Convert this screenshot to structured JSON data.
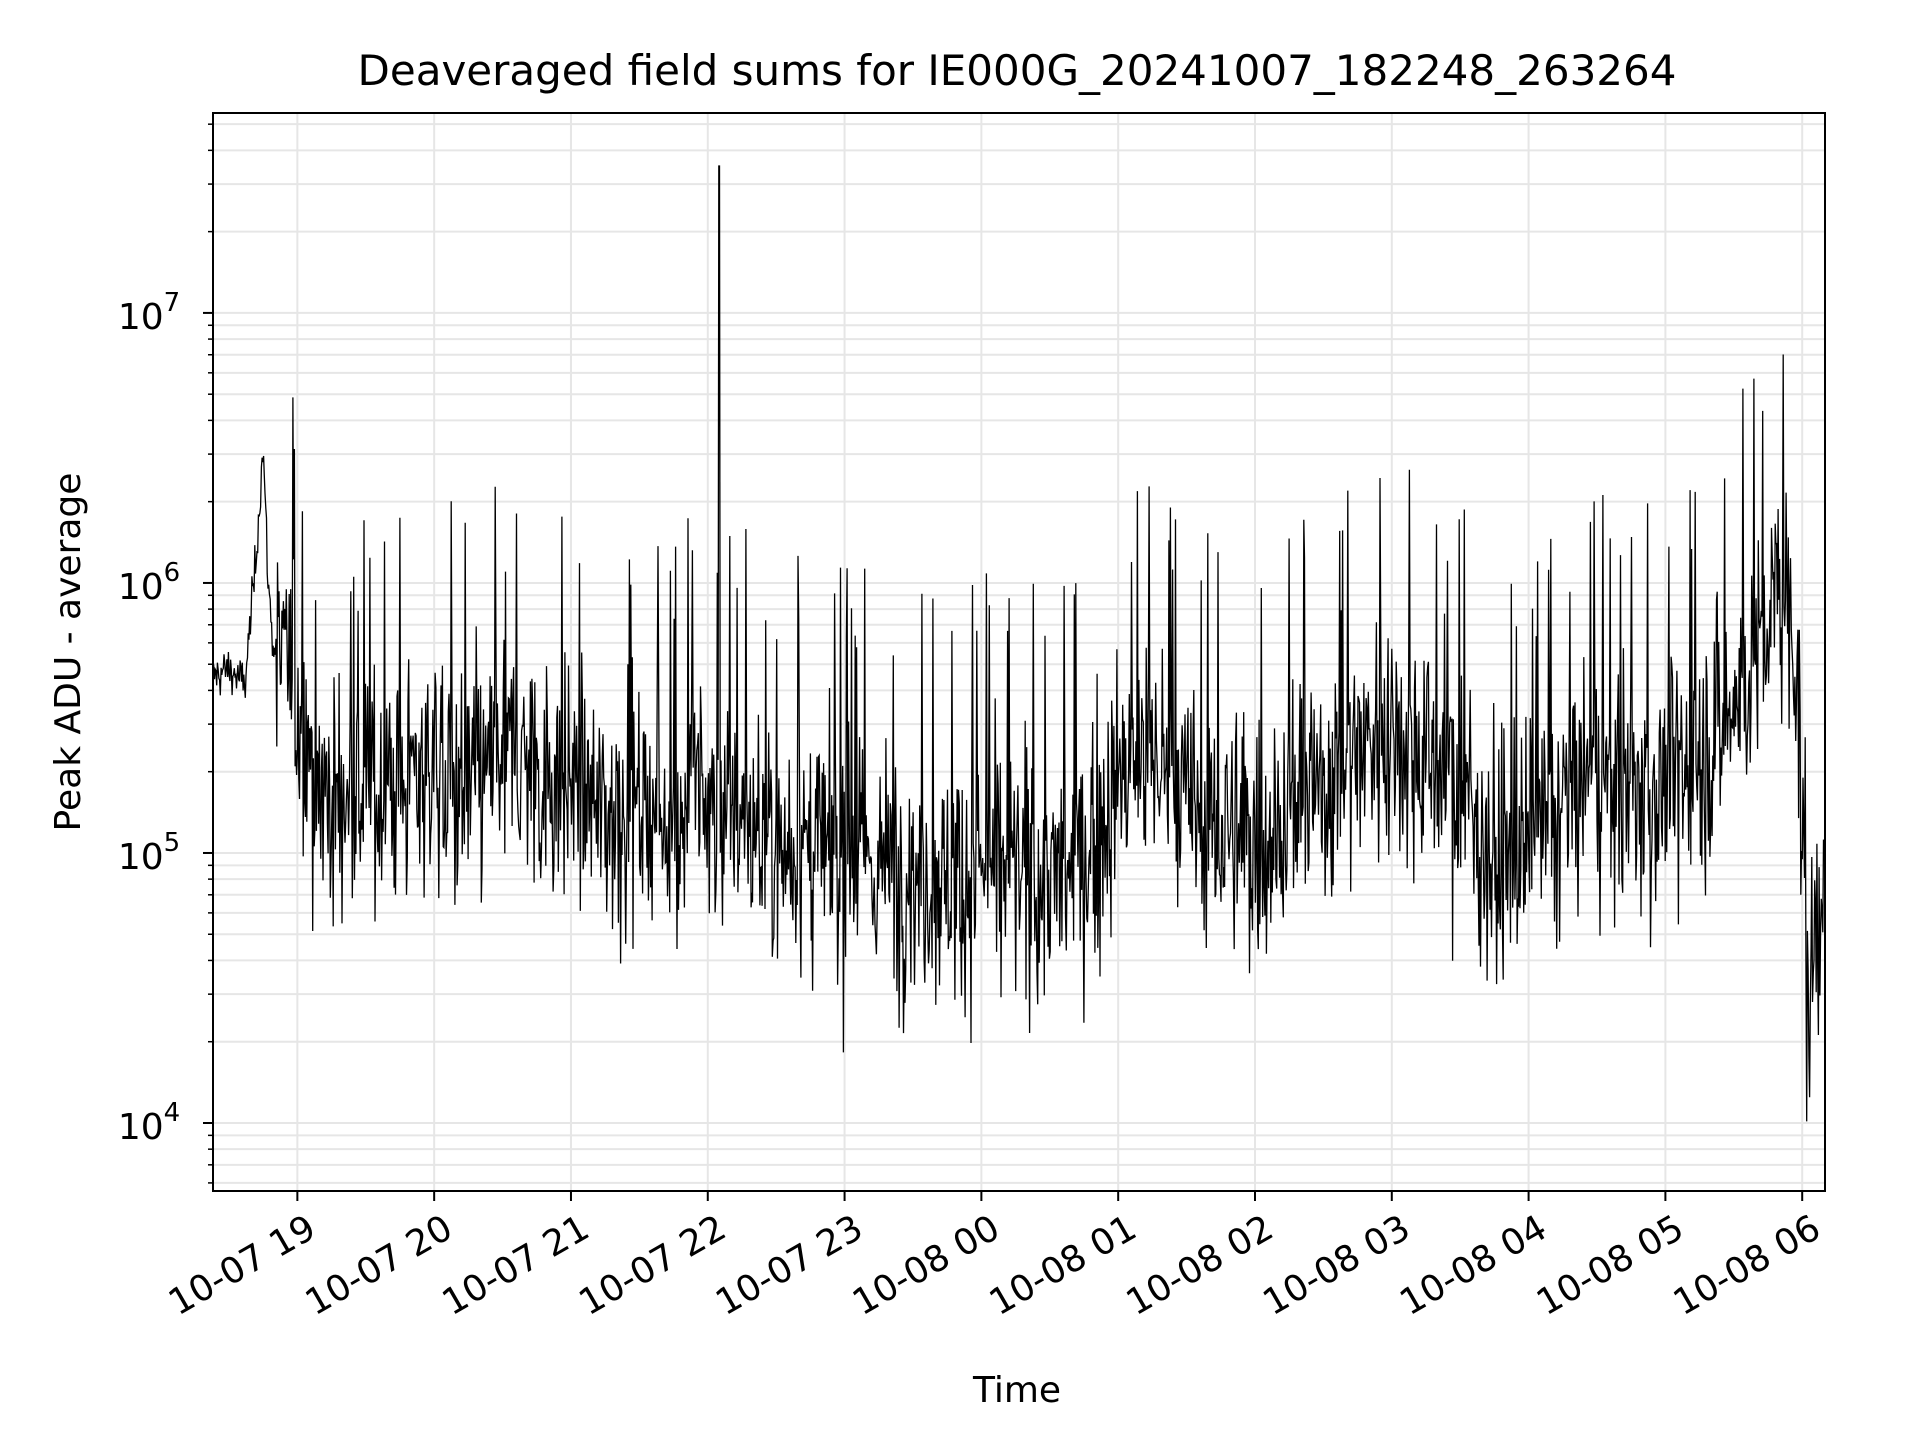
{
  "chart_data": {
    "type": "line",
    "title": "Deaveraged field sums for IE000G_20241007_182248_263264",
    "xlabel": "Time",
    "ylabel": "Peak ADU - average",
    "x_range": [
      "2024-10-07 18:23",
      "2024-10-08 06:10"
    ],
    "y_scale": "log",
    "ylim": [
      5600,
      55000000
    ],
    "x_ticks": [
      "10-07 19",
      "10-07 20",
      "10-07 21",
      "10-07 22",
      "10-07 23",
      "10-08 00",
      "10-08 01",
      "10-08 02",
      "10-08 03",
      "10-08 04",
      "10-08 05",
      "10-08 06"
    ],
    "y_ticks": [
      {
        "base": "10",
        "exp": "4",
        "value": 10000
      },
      {
        "base": "10",
        "exp": "5",
        "value": 100000
      },
      {
        "base": "10",
        "exp": "6",
        "value": 1000000
      },
      {
        "base": "10",
        "exp": "7",
        "value": 10000000
      }
    ],
    "grid": true,
    "line_color": "#000000",
    "grid_color": "#e6e6e6",
    "series": [
      {
        "x": [
          "2024-10-07 18:23",
          "2024-10-07 18:30",
          "2024-10-07 18:37",
          "2024-10-07 18:42",
          "2024-10-07 18:45",
          "2024-10-07 18:47",
          "2024-10-07 18:49",
          "2024-10-07 18:52",
          "2024-10-07 18:55",
          "2024-10-07 19:00",
          "2024-10-07 19:05",
          "2024-10-07 19:10",
          "2024-10-07 19:15",
          "2024-10-07 19:30",
          "2024-10-07 19:45",
          "2024-10-07 20:00",
          "2024-10-07 20:15",
          "2024-10-07 20:30",
          "2024-10-07 20:45",
          "2024-10-07 21:00",
          "2024-10-07 21:15",
          "2024-10-07 21:30",
          "2024-10-07 21:45",
          "2024-10-07 21:55",
          "2024-10-07 22:04",
          "2024-10-07 22:05",
          "2024-10-07 22:06",
          "2024-10-07 22:15",
          "2024-10-07 22:30",
          "2024-10-07 22:45",
          "2024-10-07 23:00",
          "2024-10-07 23:15",
          "2024-10-07 23:30",
          "2024-10-07 23:45",
          "2024-10-08 00:00",
          "2024-10-08 00:15",
          "2024-10-08 00:30",
          "2024-10-08 00:45",
          "2024-10-08 01:00",
          "2024-10-08 01:15",
          "2024-10-08 01:30",
          "2024-10-08 01:45",
          "2024-10-08 02:00",
          "2024-10-08 02:15",
          "2024-10-08 02:30",
          "2024-10-08 02:45",
          "2024-10-08 03:00",
          "2024-10-08 03:15",
          "2024-10-08 03:30",
          "2024-10-08 03:45",
          "2024-10-08 04:00",
          "2024-10-08 04:15",
          "2024-10-08 04:30",
          "2024-10-08 04:45",
          "2024-10-08 05:00",
          "2024-10-08 05:15",
          "2024-10-08 05:30",
          "2024-10-08 05:45",
          "2024-10-08 05:52",
          "2024-10-08 05:58",
          "2024-10-08 06:02",
          "2024-10-08 06:06",
          "2024-10-08 06:09"
        ],
        "y": [
          450000,
          480000,
          420000,
          1300000,
          3200000,
          1100000,
          620000,
          520000,
          480000,
          350000,
          250000,
          180000,
          150000,
          170000,
          180000,
          220000,
          160000,
          250000,
          200000,
          180000,
          140000,
          160000,
          130000,
          170000,
          140000,
          35000000,
          160000,
          130000,
          110000,
          100000,
          95000,
          90000,
          85000,
          80000,
          90000,
          85000,
          80000,
          90000,
          180000,
          240000,
          150000,
          120000,
          110000,
          140000,
          180000,
          250000,
          300000,
          230000,
          180000,
          90000,
          100000,
          150000,
          200000,
          160000,
          180000,
          220000,
          350000,
          700000,
          1000000,
          500000,
          20000,
          50000,
          90000
        ]
      }
    ]
  }
}
